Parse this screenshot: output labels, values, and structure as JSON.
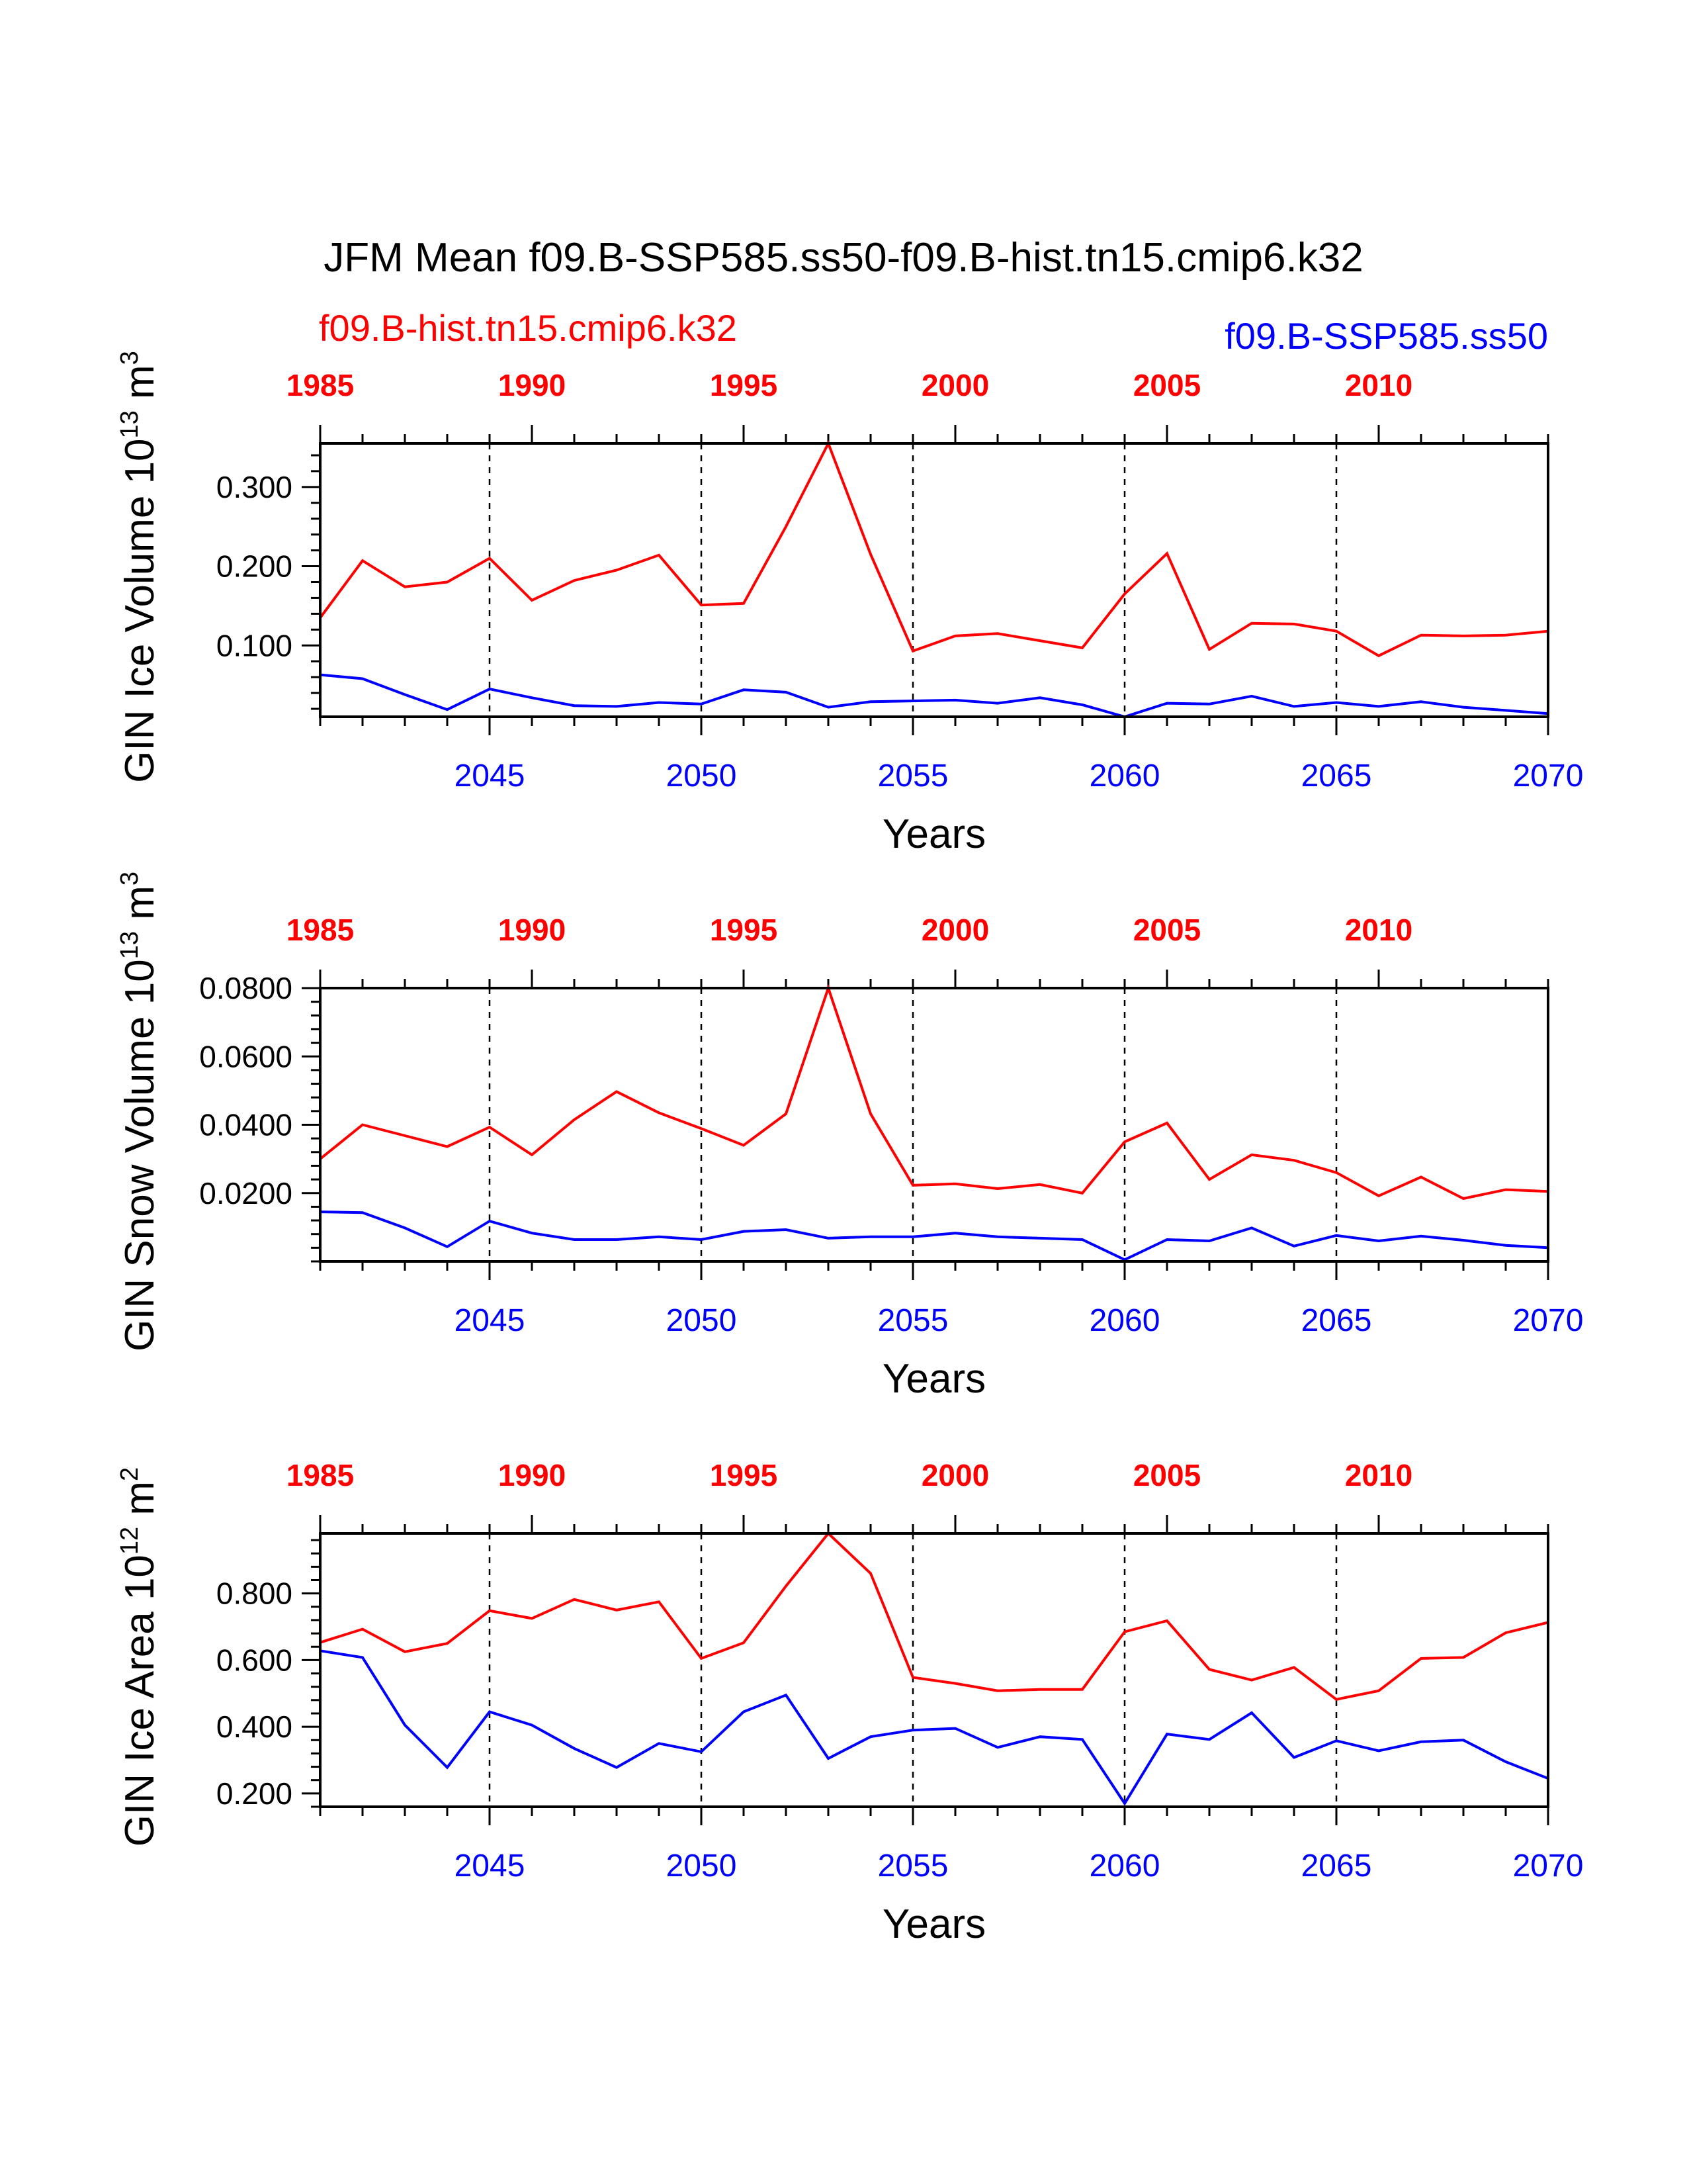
{
  "title": "JFM Mean f09.B-SSP585.ss50-f09.B-hist.tn15.cmip6.k32",
  "legend": {
    "red_label": "f09.B-hist.tn15.cmip6.k32",
    "blue_label": "f09.B-SSP585.ss50"
  },
  "colors": {
    "red": "#ff0000",
    "blue": "#0000ff",
    "axis": "#000000"
  },
  "top_axis": {
    "ticks": [
      1985,
      1990,
      1995,
      2000,
      2005,
      2010
    ],
    "range": [
      1985,
      2014
    ]
  },
  "bottom_axis": {
    "ticks": [
      2045,
      2050,
      2055,
      2060,
      2065,
      2070
    ],
    "range": [
      2041,
      2070
    ],
    "label": "Years"
  },
  "vertical_dashed_lines_at": [
    2045,
    2050,
    2055,
    2060,
    2065
  ],
  "chart_data": [
    {
      "type": "line",
      "ylabel": "GIN Ice Volume 10",
      "ylabel_exp": "13",
      "ylabel_unit": " m",
      "ylabel_unit_exp": "3",
      "ylim": [
        0.01,
        0.355
      ],
      "yticks": [
        0.1,
        0.2,
        0.3
      ],
      "ytick_labels": [
        "0.100",
        "0.200",
        "0.300"
      ],
      "yminor_step": 0.02,
      "x": [
        2041,
        2042,
        2043,
        2044,
        2045,
        2046,
        2047,
        2048,
        2049,
        2050,
        2051,
        2052,
        2053,
        2054,
        2055,
        2056,
        2057,
        2058,
        2059,
        2060,
        2061,
        2062,
        2063,
        2064,
        2065,
        2066,
        2067,
        2068,
        2069,
        2070
      ],
      "series": [
        {
          "name": "f09.B-hist.tn15.cmip6.k32",
          "color": "#ff0000",
          "values": [
            0.135,
            0.207,
            0.174,
            0.18,
            0.21,
            0.157,
            0.182,
            0.195,
            0.214,
            0.151,
            0.153,
            0.25,
            0.355,
            0.215,
            0.093,
            0.112,
            0.115,
            0.106,
            0.097,
            0.165,
            0.216,
            0.095,
            0.128,
            0.127,
            0.118,
            0.087,
            0.113,
            0.112,
            0.113,
            0.118
          ]
        },
        {
          "name": "f09.B-SSP585.ss50",
          "color": "#0000ff",
          "values": [
            0.063,
            0.058,
            0.038,
            0.019,
            0.045,
            0.034,
            0.024,
            0.023,
            0.028,
            0.026,
            0.044,
            0.041,
            0.022,
            0.029,
            0.03,
            0.031,
            0.027,
            0.034,
            0.025,
            0.01,
            0.027,
            0.026,
            0.036,
            0.023,
            0.028,
            0.023,
            0.029,
            0.022,
            0.018,
            0.014
          ]
        }
      ]
    },
    {
      "type": "line",
      "ylabel": "GIN Snow Volume 10",
      "ylabel_exp": "13",
      "ylabel_unit": " m",
      "ylabel_unit_exp": "3",
      "ylim": [
        0.0,
        0.08
      ],
      "yticks": [
        0.02,
        0.04,
        0.06,
        0.08
      ],
      "ytick_labels": [
        "0.0200",
        "0.0400",
        "0.0600",
        "0.0800"
      ],
      "yminor_step": 0.004,
      "x": [
        2041,
        2042,
        2043,
        2044,
        2045,
        2046,
        2047,
        2048,
        2049,
        2050,
        2051,
        2052,
        2053,
        2054,
        2055,
        2056,
        2057,
        2058,
        2059,
        2060,
        2061,
        2062,
        2063,
        2064,
        2065,
        2066,
        2067,
        2068,
        2069,
        2070
      ],
      "series": [
        {
          "name": "f09.B-hist.tn15.cmip6.k32",
          "color": "#ff0000",
          "values": [
            0.03,
            0.04,
            0.0368,
            0.0336,
            0.0393,
            0.0312,
            0.0415,
            0.0497,
            0.0435,
            0.0389,
            0.034,
            0.0432,
            0.08,
            0.0432,
            0.0223,
            0.0227,
            0.0213,
            0.0225,
            0.02,
            0.035,
            0.0405,
            0.024,
            0.0312,
            0.0296,
            0.026,
            0.0192,
            0.0247,
            0.0184,
            0.021,
            0.0205
          ]
        },
        {
          "name": "f09.B-SSP585.ss50",
          "color": "#0000ff",
          "values": [
            0.0145,
            0.0143,
            0.0098,
            0.0043,
            0.0118,
            0.0083,
            0.0064,
            0.0064,
            0.0072,
            0.0064,
            0.0088,
            0.0093,
            0.0068,
            0.0072,
            0.0072,
            0.0083,
            0.0072,
            0.0068,
            0.0064,
            0.0005,
            0.0064,
            0.006,
            0.0098,
            0.0045,
            0.0076,
            0.006,
            0.0074,
            0.0062,
            0.0047,
            0.004
          ]
        }
      ]
    },
    {
      "type": "line",
      "ylabel": "GIN Ice Area 10",
      "ylabel_exp": "12",
      "ylabel_unit": " m",
      "ylabel_unit_exp": "2",
      "ylim": [
        0.16,
        0.98
      ],
      "yticks": [
        0.2,
        0.4,
        0.6,
        0.8
      ],
      "ytick_labels": [
        "0.200",
        "0.400",
        "0.600",
        "0.800"
      ],
      "yminor_step": 0.04,
      "x": [
        2041,
        2042,
        2043,
        2044,
        2045,
        2046,
        2047,
        2048,
        2049,
        2050,
        2051,
        2052,
        2053,
        2054,
        2055,
        2056,
        2057,
        2058,
        2059,
        2060,
        2061,
        2062,
        2063,
        2064,
        2065,
        2066,
        2067,
        2068,
        2069,
        2070
      ],
      "series": [
        {
          "name": "f09.B-hist.tn15.cmip6.k32",
          "color": "#ff0000",
          "values": [
            0.653,
            0.693,
            0.625,
            0.65,
            0.748,
            0.725,
            0.782,
            0.75,
            0.775,
            0.605,
            0.652,
            0.822,
            0.98,
            0.86,
            0.548,
            0.53,
            0.508,
            0.512,
            0.512,
            0.685,
            0.718,
            0.572,
            0.54,
            0.578,
            0.482,
            0.508,
            0.605,
            0.608,
            0.682,
            0.713
          ]
        },
        {
          "name": "f09.B-SSP585.ss50",
          "color": "#0000ff",
          "values": [
            0.628,
            0.608,
            0.405,
            0.278,
            0.445,
            0.405,
            0.335,
            0.278,
            0.35,
            0.325,
            0.445,
            0.495,
            0.305,
            0.37,
            0.39,
            0.395,
            0.338,
            0.37,
            0.362,
            0.17,
            0.378,
            0.362,
            0.442,
            0.308,
            0.358,
            0.328,
            0.355,
            0.36,
            0.295,
            0.245
          ]
        }
      ]
    }
  ]
}
